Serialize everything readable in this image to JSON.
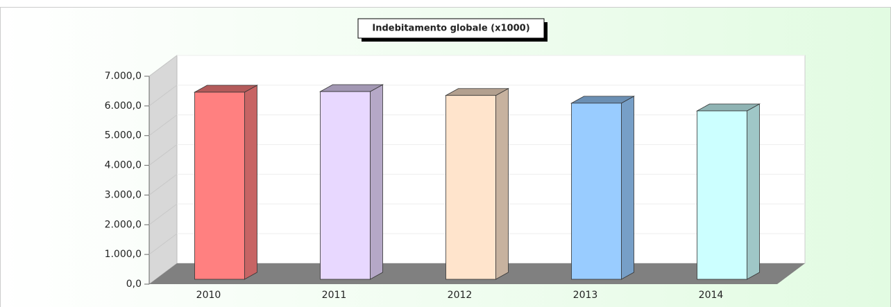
{
  "chart_data": {
    "type": "bar3d",
    "title": "Indebitamento globale (x1000)",
    "categories": [
      "2010",
      "2011",
      "2012",
      "2013",
      "2014"
    ],
    "values": [
      6300,
      6320,
      6190,
      5930,
      5670
    ],
    "colors": [
      "#ff8080",
      "#e8d8ff",
      "#ffe4cc",
      "#99ccff",
      "#ccffff"
    ],
    "ylim": [
      0,
      7000
    ],
    "yticks": [
      {
        "value": 0,
        "label": "0,0"
      },
      {
        "value": 1000,
        "label": "1.000,0"
      },
      {
        "value": 2000,
        "label": "2.000,0"
      },
      {
        "value": 3000,
        "label": "3.000,0"
      },
      {
        "value": 4000,
        "label": "4.000,0"
      },
      {
        "value": 5000,
        "label": "5.000,0"
      },
      {
        "value": 6000,
        "label": "6.000,0"
      },
      {
        "value": 7000,
        "label": "7.000,0"
      }
    ],
    "grid": true
  }
}
